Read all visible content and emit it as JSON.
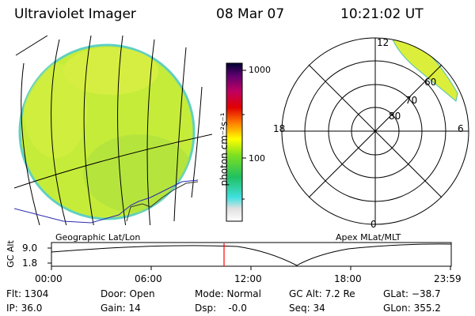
{
  "header": {
    "instrument": "Ultraviolet Imager",
    "date": "08 Mar 07",
    "time": "10:21:02 UT"
  },
  "colorbar": {
    "unit_label": "photon cm⁻²s⁻¹",
    "ticks": [
      "1000",
      "100"
    ]
  },
  "polar_plot": {
    "mlt_labels": [
      "12",
      "18",
      "6",
      "0"
    ],
    "mlat_labels": [
      "60",
      "70",
      "80"
    ]
  },
  "orbit_panel": {
    "left_title": "Geographic Lat/Lon",
    "right_title": "Apex  MLat/MLT",
    "y_axis_label": "GC Alt",
    "y_ticks": [
      "9.0",
      "1.8"
    ],
    "x_ticks": [
      "00:00",
      "06:00",
      "12:00",
      "18:00",
      "23:59"
    ],
    "current_time_marker_fraction": 0.433
  },
  "info": {
    "flt": "Flt: 1304",
    "ip": "IP: 36.0",
    "door": "Door: Open",
    "gain": "Gain: 14",
    "mode": "Mode: Normal",
    "dsp": "Dsp:    -0.0",
    "gc_alt": "GC Alt: 7.2 Re",
    "seq": "Seq: 34",
    "glat": "GLat: −38.7",
    "glon": "GLon: 355.2"
  },
  "colors": {
    "disk_fill": "#c6ec3a",
    "disk_edge": "#5fd0c0",
    "aurora_fill": "#dcee3c",
    "time_marker": "#ff0000",
    "coastline": "#2a2ab0"
  }
}
